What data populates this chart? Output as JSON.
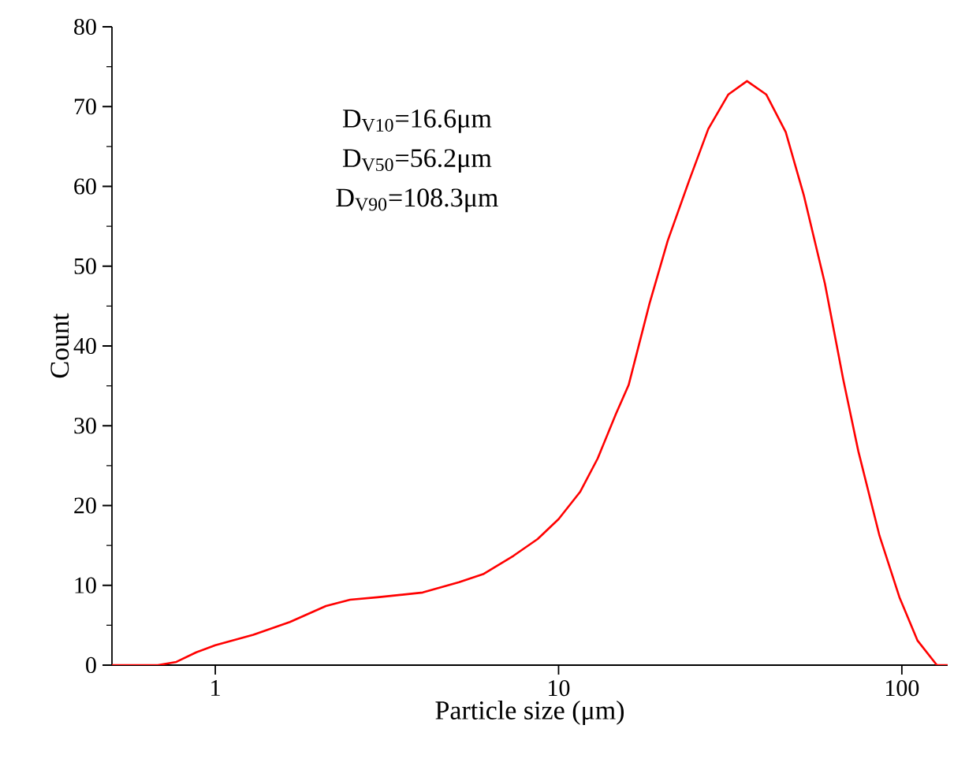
{
  "chart_data": {
    "type": "line",
    "xlabel": "Particle size (μm)",
    "ylabel": "Count",
    "log": "x",
    "xlim": [
      0.5,
      136
    ],
    "ylim": [
      0,
      80
    ],
    "xticks": [
      1,
      10,
      100
    ],
    "yticks": [
      0,
      10,
      20,
      30,
      40,
      50,
      60,
      70,
      80
    ],
    "marker": "none",
    "line_style": "solid",
    "annotations": [
      "D$_{V10}$=16.6μm",
      "D$_{V50}$=56.2μm",
      "D$_{V90}$=108.3μm"
    ],
    "series": [
      {
        "color": "#ff0000",
        "x": [
          0.5,
          0.68,
          0.77,
          0.88,
          1,
          1.29,
          1.65,
          2.1,
          2.47,
          2.97,
          4.02,
          5.13,
          6.03,
          7.39,
          8.69,
          10,
          11.55,
          13.0,
          14.7,
          16.0,
          18.4,
          20.8,
          24.0,
          27.3,
          31.2,
          35.4,
          40.3,
          45.9,
          51.8,
          59.7,
          67.5,
          74.7,
          86.1,
          98.4,
          111,
          126.5,
          136
        ],
        "values": [
          0,
          0,
          0.4,
          1.6,
          2.5,
          3.8,
          5.4,
          7.4,
          8.2,
          8.5,
          9.1,
          10.4,
          11.4,
          13.7,
          15.8,
          18.3,
          21.7,
          25.9,
          31.5,
          35.1,
          45.3,
          53.2,
          60.7,
          67.2,
          71.5,
          73.2,
          71.5,
          66.8,
          58.9,
          47.8,
          35.8,
          26.8,
          16.2,
          8.5,
          3.1,
          0,
          0
        ]
      }
    ]
  }
}
